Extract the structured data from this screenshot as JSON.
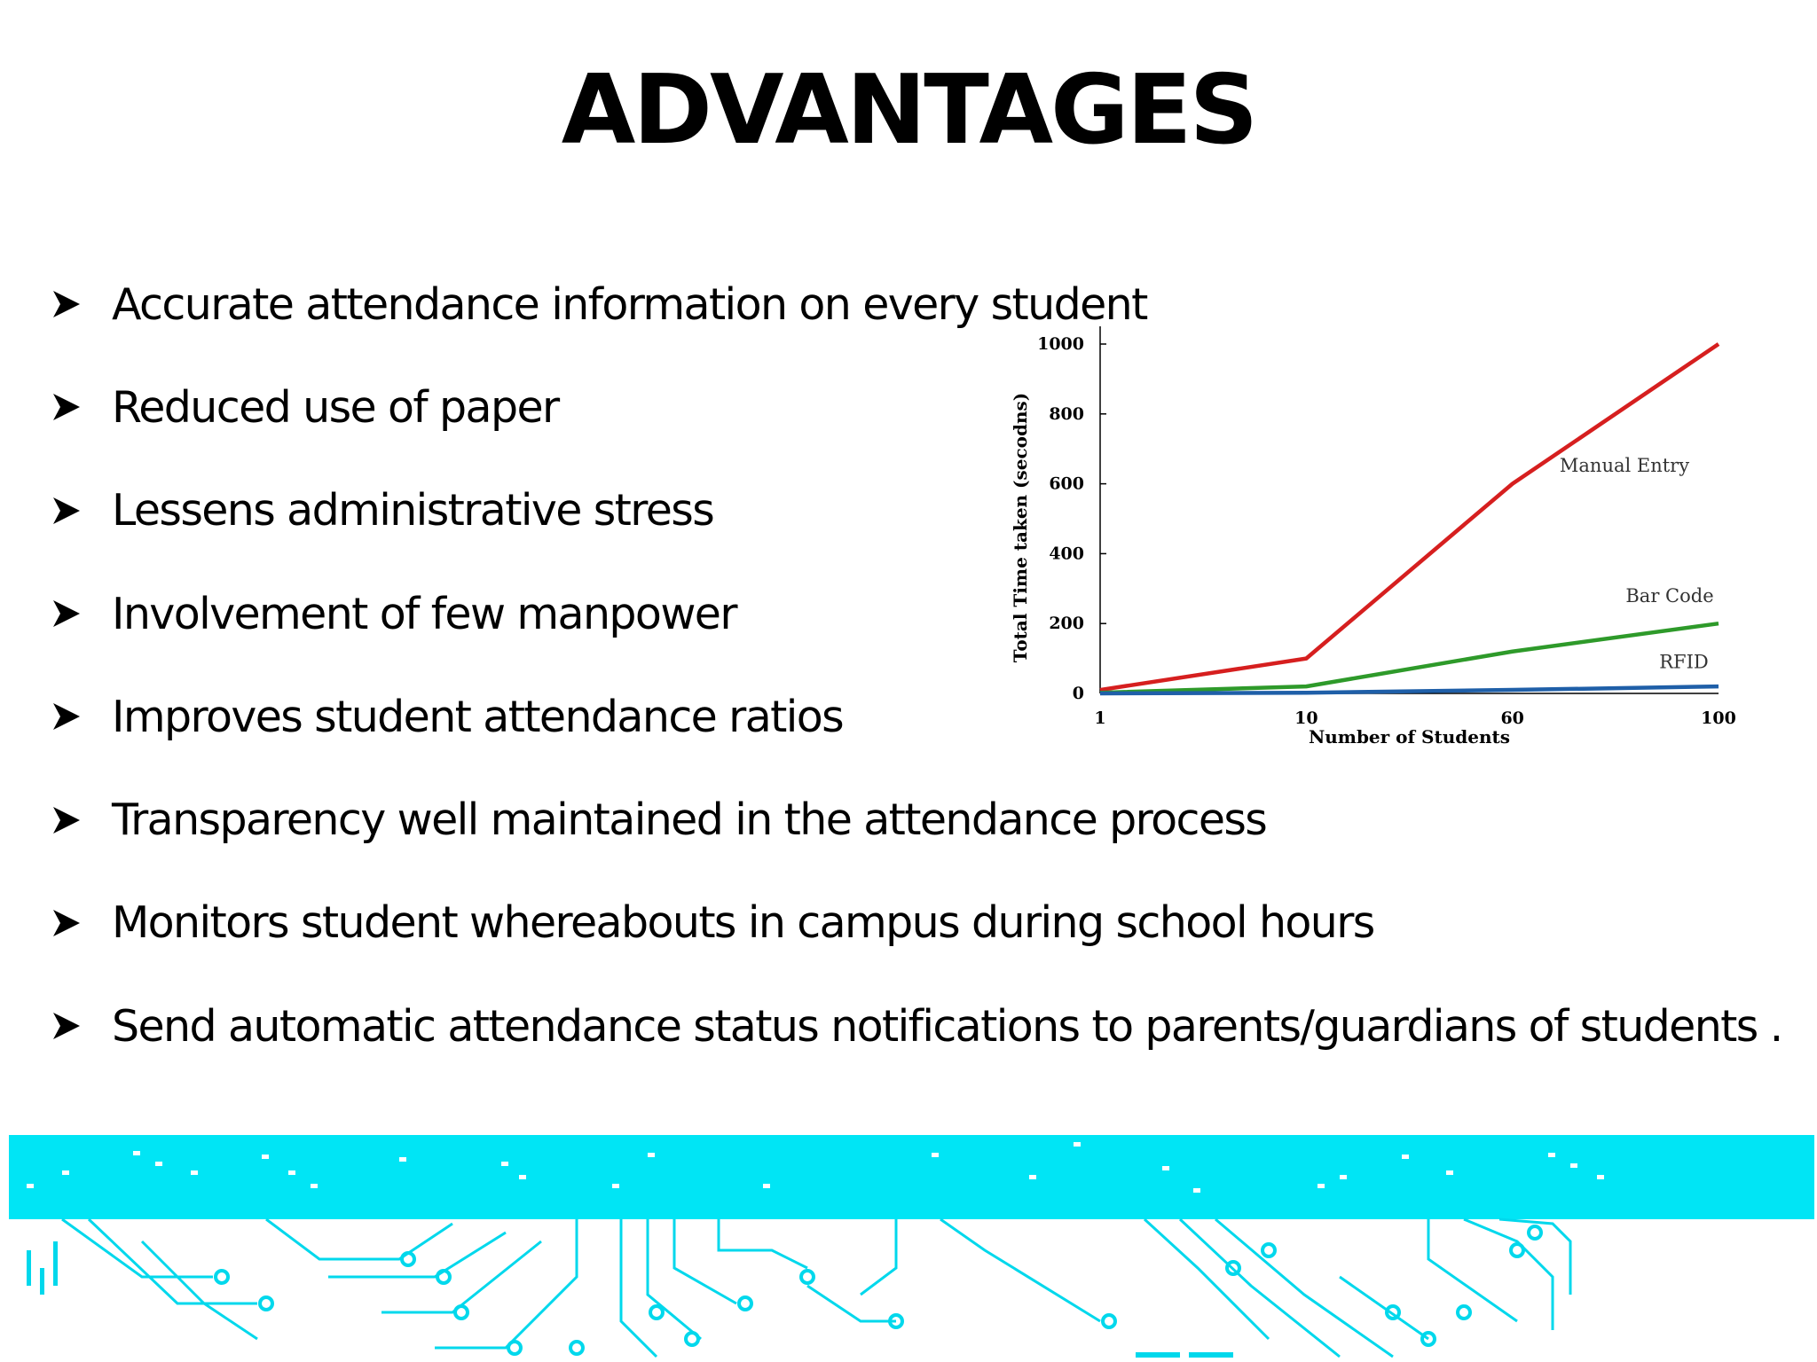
{
  "slide": {
    "title": "ADVANTAGES",
    "bullet_icon": "arrowhead-icon",
    "bullets": [
      "Accurate attendance information on every student",
      "Reduced use of paper",
      "Lessens administrative stress",
      "Involvement of few manpower",
      "Improves student attendance ratios",
      "Transparency well maintained in the attendance process",
      "Monitors student whereabouts in campus during school hours",
      "Send automatic attendance status notifications to parents/guardians of students ."
    ]
  },
  "colors": {
    "accent": "#00e5f5",
    "manual_entry": "#d61f1f",
    "bar_code": "#2e9a2a",
    "rfid": "#1f5fa8"
  },
  "chart_data": {
    "type": "line",
    "title": "",
    "xlabel": "Number of Students",
    "ylabel": "Total Time taken (secodns)",
    "categories": [
      "1",
      "10",
      "60",
      "100"
    ],
    "ylim": [
      0,
      1000
    ],
    "yticks": [
      "0",
      "200",
      "400",
      "600",
      "800",
      "1000"
    ],
    "grid": false,
    "legend": "inline labels",
    "series": [
      {
        "name": "Manual Entry",
        "values": [
          10,
          100,
          600,
          1000
        ],
        "color": "#d61f1f"
      },
      {
        "name": "Bar Code",
        "values": [
          2,
          20,
          120,
          200
        ],
        "color": "#2e9a2a"
      },
      {
        "name": "RFID",
        "values": [
          0,
          2,
          10,
          20
        ],
        "color": "#1f5fa8"
      }
    ]
  }
}
